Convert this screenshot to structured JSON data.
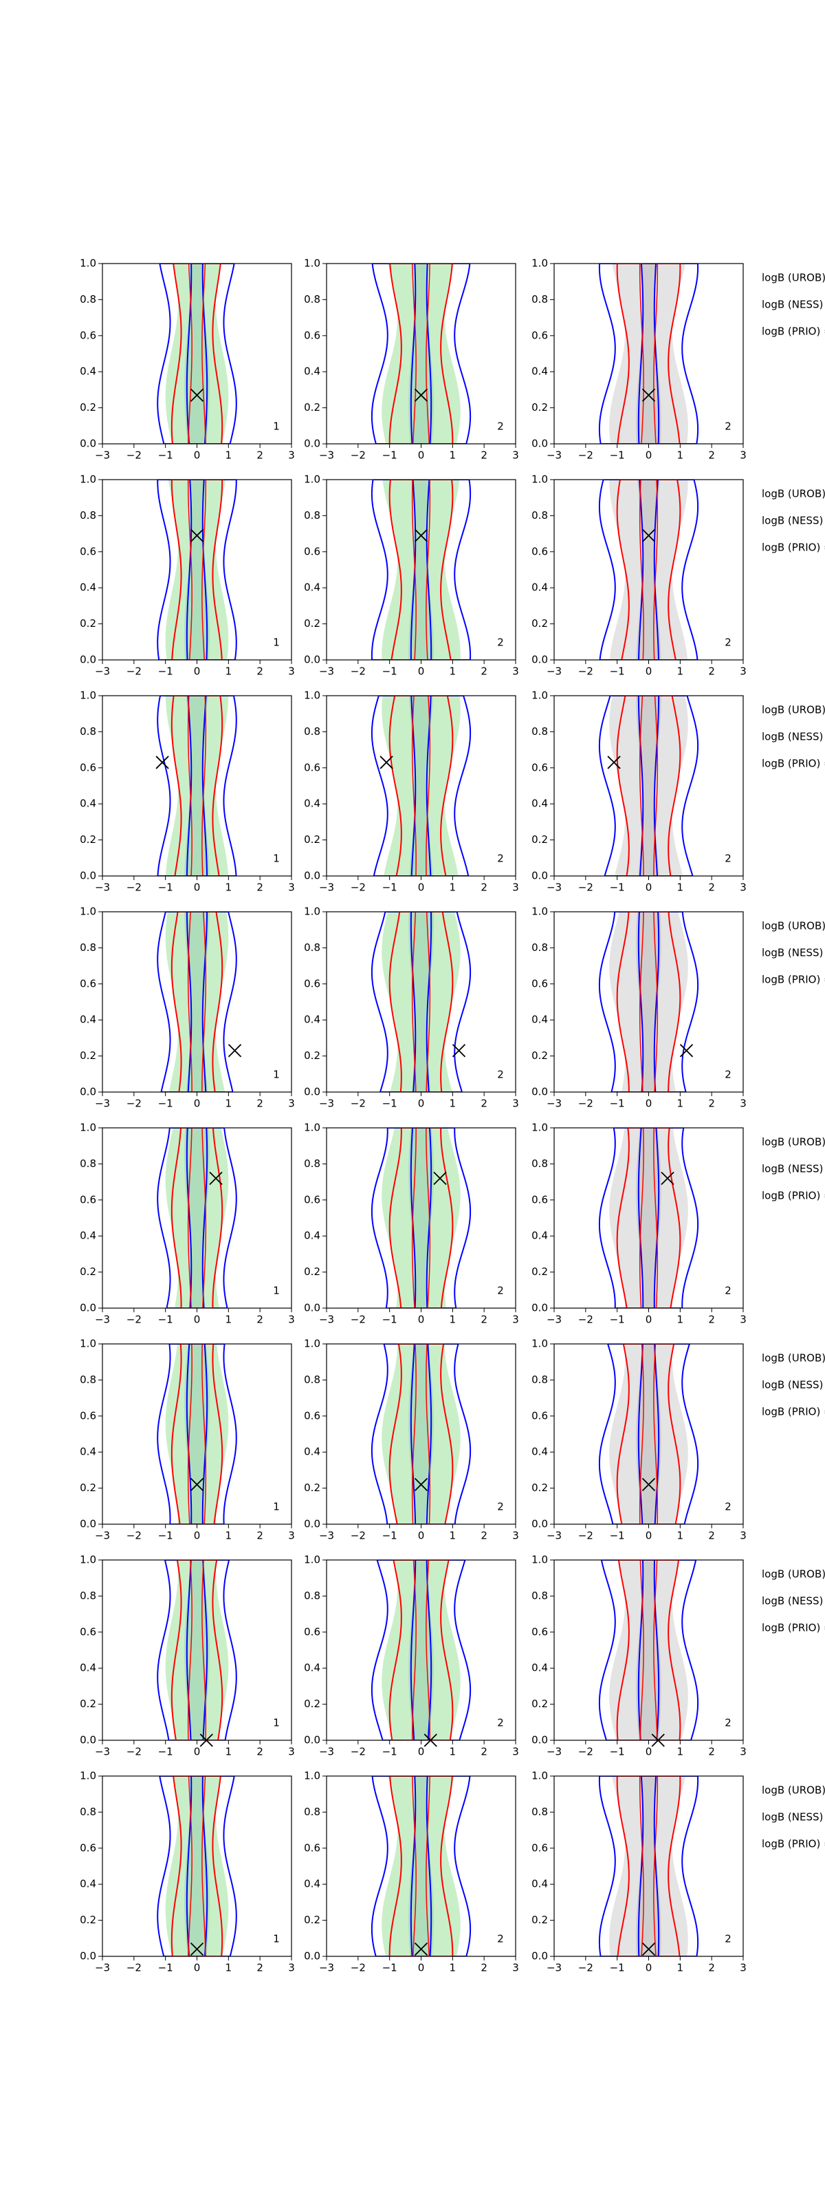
{
  "axes": {
    "xlim": [
      -3,
      3
    ],
    "ylim": [
      0,
      1
    ],
    "xticks": [
      {
        "value": -3,
        "label": "−3"
      },
      {
        "value": -2,
        "label": "−2"
      },
      {
        "value": -1,
        "label": "−1"
      },
      0,
      1,
      2,
      3
    ],
    "yticks": [
      {
        "value": 0,
        "label": "0.0"
      },
      0.2,
      0.4,
      0.6,
      0.8,
      {
        "value": 1,
        "label": "1.0"
      }
    ]
  },
  "rows": [
    {
      "panels": [
        {
          "label": "1",
          "marker": [
            0,
            0.27
          ]
        },
        {
          "label": "2",
          "marker": [
            0,
            0.27
          ]
        },
        {
          "label": "2",
          "marker": [
            0,
            0.27
          ]
        }
      ],
      "annotations": [
        "logB (UROB) =",
        "logB (NESS) =",
        "logB (PRIO) ="
      ]
    },
    {
      "panels": [
        {
          "label": "1",
          "marker": [
            0,
            0.69
          ]
        },
        {
          "label": "2",
          "marker": [
            0,
            0.69
          ]
        },
        {
          "label": "2",
          "marker": [
            0,
            0.69
          ]
        }
      ],
      "annotations": [
        "logB (UROB) =",
        "logB (NESS) =",
        "logB (PRIO) ="
      ]
    },
    {
      "panels": [
        {
          "label": "1",
          "marker": [
            -1.1,
            0.63
          ]
        },
        {
          "label": "2",
          "marker": [
            -1.1,
            0.63
          ]
        },
        {
          "label": "2",
          "marker": [
            -1.1,
            0.63
          ]
        }
      ],
      "annotations": [
        "logB (UROB) =",
        "logB (NESS) =",
        "logB (PRIO) ="
      ]
    },
    {
      "panels": [
        {
          "label": "1",
          "marker": [
            1.2,
            0.23
          ]
        },
        {
          "label": "2",
          "marker": [
            1.2,
            0.23
          ]
        },
        {
          "label": "2",
          "marker": [
            1.2,
            0.23
          ]
        }
      ],
      "annotations": [
        "logB (UROB) =",
        "logB (NESS) =",
        "logB (PRIO) ="
      ]
    },
    {
      "panels": [
        {
          "label": "1",
          "marker": [
            0.6,
            0.72
          ]
        },
        {
          "label": "2",
          "marker": [
            0.6,
            0.72
          ]
        },
        {
          "label": "2",
          "marker": [
            0.6,
            0.72
          ]
        }
      ],
      "annotations": [
        "logB (UROB) =",
        "logB (NESS) =",
        "logB (PRIO) ="
      ]
    },
    {
      "panels": [
        {
          "label": "1",
          "marker": [
            0,
            0.22
          ]
        },
        {
          "label": "2",
          "marker": [
            0,
            0.22
          ]
        },
        {
          "label": "2",
          "marker": [
            0,
            0.22
          ]
        }
      ],
      "annotations": [
        "logB (UROB) =",
        "logB (NESS) =",
        "logB (PRIO) ="
      ]
    },
    {
      "panels": [
        {
          "label": "1",
          "marker": [
            0.3,
            0
          ]
        },
        {
          "label": "2",
          "marker": [
            0.3,
            0
          ]
        },
        {
          "label": "2",
          "marker": [
            0.3,
            0
          ]
        }
      ],
      "annotations": [
        "logB (UROB) =",
        "logB (NESS) =",
        "logB (PRIO) ="
      ]
    },
    {
      "panels": [
        {
          "label": "1",
          "marker": [
            0,
            0.04
          ]
        },
        {
          "label": "2",
          "marker": [
            0,
            0.04
          ]
        },
        {
          "label": "2",
          "marker": [
            0,
            0.04
          ]
        }
      ],
      "annotations": [
        "logB (UROB) =",
        "logB (NESS) =",
        "logB (PRIO) ="
      ]
    }
  ]
}
